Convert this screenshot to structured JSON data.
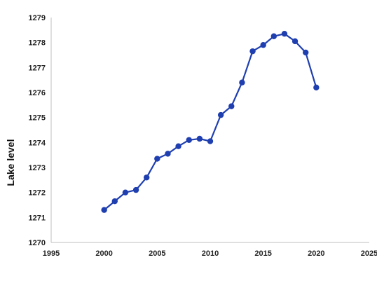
{
  "chart_data": {
    "type": "line",
    "title": "",
    "xlabel": "",
    "ylabel": "Lake level",
    "xlim": [
      1995,
      2025
    ],
    "ylim": [
      1270,
      1279
    ],
    "x_ticks": [
      1995,
      2000,
      2005,
      2010,
      2015,
      2020,
      2025
    ],
    "y_ticks": [
      1270,
      1271,
      1272,
      1273,
      1274,
      1275,
      1276,
      1277,
      1278,
      1279
    ],
    "grid": false,
    "legend": "none",
    "series": [
      {
        "color": "#1f3fb0",
        "marker": "circle",
        "points": [
          {
            "x": 2000,
            "y": 1271.3
          },
          {
            "x": 2001,
            "y": 1271.65
          },
          {
            "x": 2002,
            "y": 1272.0
          },
          {
            "x": 2003,
            "y": 1272.1
          },
          {
            "x": 2004,
            "y": 1272.6
          },
          {
            "x": 2005,
            "y": 1273.35
          },
          {
            "x": 2006,
            "y": 1273.55
          },
          {
            "x": 2007,
            "y": 1273.85
          },
          {
            "x": 2008,
            "y": 1274.1
          },
          {
            "x": 2009,
            "y": 1274.15
          },
          {
            "x": 2010,
            "y": 1274.05
          },
          {
            "x": 2011,
            "y": 1275.1
          },
          {
            "x": 2012,
            "y": 1275.45
          },
          {
            "x": 2013,
            "y": 1276.4
          },
          {
            "x": 2014,
            "y": 1277.65
          },
          {
            "x": 2015,
            "y": 1277.9
          },
          {
            "x": 2016,
            "y": 1278.25
          },
          {
            "x": 2017,
            "y": 1278.35
          },
          {
            "x": 2018,
            "y": 1278.05
          },
          {
            "x": 2019,
            "y": 1277.6
          },
          {
            "x": 2020,
            "y": 1276.2
          }
        ]
      }
    ]
  }
}
